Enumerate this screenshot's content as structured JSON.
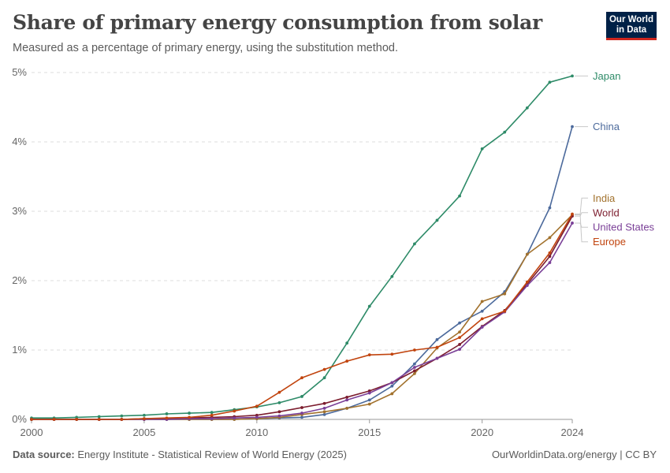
{
  "header": {
    "title": "Share of primary energy consumption from solar",
    "subtitle": "Measured as a percentage of primary energy, using the substitution method."
  },
  "logo": {
    "line1": "Our World",
    "line2": "in Data"
  },
  "footer": {
    "source_label": "Data source:",
    "source_text": "Energy Institute - Statistical Review of World Energy (2025)",
    "right": "OurWorldinData.org/energy | CC BY"
  },
  "chart_data": {
    "type": "line",
    "title": "Share of primary energy consumption from solar",
    "xlabel": "",
    "ylabel": "",
    "xlim": [
      2000,
      2024
    ],
    "ylim": [
      0,
      5
    ],
    "x_ticks": [
      2000,
      2005,
      2010,
      2015,
      2020,
      2024
    ],
    "y_ticks": [
      0,
      1,
      2,
      3,
      4,
      5
    ],
    "y_tick_labels": [
      "0%",
      "1%",
      "2%",
      "3%",
      "4%",
      "5%"
    ],
    "grid": true,
    "legend": "end-labels-right",
    "x": [
      2000,
      2001,
      2002,
      2003,
      2004,
      2005,
      2006,
      2007,
      2008,
      2009,
      2010,
      2011,
      2012,
      2013,
      2014,
      2015,
      2016,
      2017,
      2018,
      2019,
      2020,
      2021,
      2022,
      2023,
      2024
    ],
    "series": [
      {
        "name": "Japan",
        "color": "#2e8b68",
        "label_y": 4.95,
        "values": [
          0.02,
          0.02,
          0.03,
          0.04,
          0.05,
          0.06,
          0.08,
          0.09,
          0.1,
          0.14,
          0.18,
          0.24,
          0.33,
          0.6,
          1.1,
          1.63,
          2.06,
          2.53,
          2.87,
          3.22,
          3.9,
          4.14,
          4.49,
          4.86,
          4.95
        ]
      },
      {
        "name": "China",
        "color": "#4c6a9c",
        "label_y": 4.22,
        "values": [
          0.0,
          0.0,
          0.0,
          0.0,
          0.0,
          0.0,
          0.0,
          0.0,
          0.0,
          0.0,
          0.01,
          0.02,
          0.03,
          0.07,
          0.16,
          0.28,
          0.48,
          0.8,
          1.15,
          1.39,
          1.56,
          1.84,
          2.38,
          3.05,
          4.22
        ]
      },
      {
        "name": "India",
        "color": "#a2722e",
        "label_y": 3.19,
        "values": [
          0.0,
          0.0,
          0.0,
          0.0,
          0.0,
          0.0,
          0.0,
          0.0,
          0.0,
          0.0,
          0.01,
          0.03,
          0.07,
          0.11,
          0.16,
          0.22,
          0.37,
          0.66,
          1.03,
          1.26,
          1.7,
          1.81,
          2.38,
          2.62,
          2.95
        ]
      },
      {
        "name": "World",
        "color": "#7c1d2e",
        "label_y": 2.98,
        "values": [
          0.0,
          0.0,
          0.0,
          0.0,
          0.0,
          0.01,
          0.01,
          0.02,
          0.03,
          0.04,
          0.06,
          0.11,
          0.17,
          0.23,
          0.32,
          0.41,
          0.53,
          0.7,
          0.88,
          1.08,
          1.34,
          1.57,
          1.95,
          2.35,
          2.93
        ]
      },
      {
        "name": "United States",
        "color": "#7a3f97",
        "label_y": 2.77,
        "values": [
          0.0,
          0.0,
          0.0,
          0.0,
          0.0,
          0.0,
          0.0,
          0.01,
          0.01,
          0.02,
          0.03,
          0.05,
          0.09,
          0.16,
          0.28,
          0.38,
          0.53,
          0.75,
          0.88,
          1.01,
          1.33,
          1.55,
          1.93,
          2.26,
          2.83
        ]
      },
      {
        "name": "Europe",
        "color": "#c1440e",
        "label_y": 2.56,
        "values": [
          0.0,
          0.0,
          0.0,
          0.0,
          0.0,
          0.01,
          0.02,
          0.03,
          0.06,
          0.12,
          0.19,
          0.39,
          0.6,
          0.72,
          0.84,
          0.93,
          0.94,
          1.0,
          1.04,
          1.18,
          1.45,
          1.56,
          1.98,
          2.4,
          2.96
        ]
      }
    ]
  }
}
